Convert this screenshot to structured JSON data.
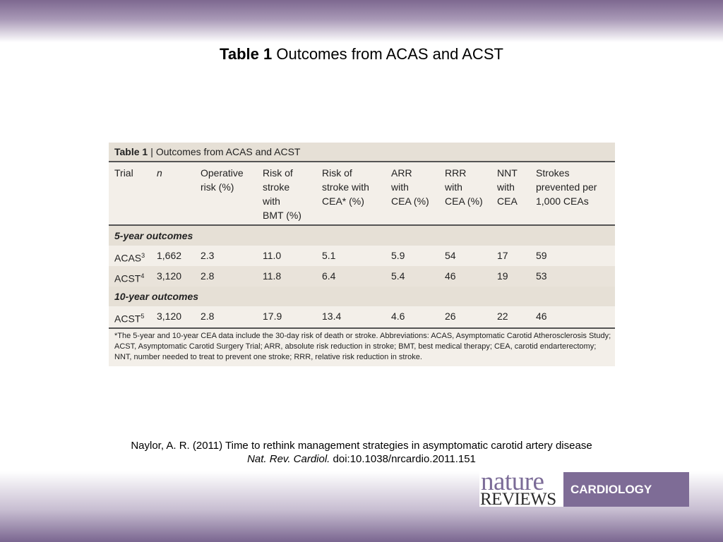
{
  "slide": {
    "title_bold": "Table 1",
    "title_rest": "Outcomes from ACAS and ACST"
  },
  "table": {
    "caption_label": "Table 1",
    "caption_sep": "|",
    "caption_text": "Outcomes from ACAS and ACST",
    "headers": [
      [
        "Trial"
      ],
      [
        "n"
      ],
      [
        "Operative",
        "risk (%)"
      ],
      [
        "Risk of",
        "stroke",
        "with",
        "BMT (%)"
      ],
      [
        "Risk of",
        "stroke with",
        "CEA* (%)"
      ],
      [
        "ARR",
        "with",
        "CEA (%)"
      ],
      [
        "RRR",
        "with",
        "CEA (%)"
      ],
      [
        "NNT",
        "with",
        "CEA"
      ],
      [
        "Strokes",
        "prevented per",
        "1,000 CEAs"
      ]
    ],
    "section_5yr": "5-year outcomes",
    "section_10yr": "10-year outcomes",
    "rows_5yr": [
      {
        "trial": "ACAS",
        "sup": "3",
        "n": "1,662",
        "op": "2.3",
        "bmt": "11.0",
        "cea": "5.1",
        "arr": "5.9",
        "rrr": "54",
        "nnt": "17",
        "prevented": "59"
      },
      {
        "trial": "ACST",
        "sup": "4",
        "n": "3,120",
        "op": "2.8",
        "bmt": "11.8",
        "cea": "6.4",
        "arr": "5.4",
        "rrr": "46",
        "nnt": "19",
        "prevented": "53"
      }
    ],
    "rows_10yr": [
      {
        "trial": "ACST",
        "sup": "5",
        "n": "3,120",
        "op": "2.8",
        "bmt": "17.9",
        "cea": "13.4",
        "arr": "4.6",
        "rrr": "26",
        "nnt": "22",
        "prevented": "46"
      }
    ],
    "footnote": "*The 5-year and 10-year CEA data include the 30-day risk of death or stroke. Abbreviations: ACAS, Asymptomatic Carotid Atherosclerosis Study; ACST, Asymptomatic Carotid Surgery Trial; ARR, absolute risk reduction in stroke; BMT, best medical therapy; CEA, carotid endarterectomy; NNT, number needed to treat to prevent one stroke; RRR, relative risk reduction in stroke."
  },
  "citation": {
    "line1": "Naylor, A. R. (2011) Time to rethink management strategies in asymptomatic carotid artery disease",
    "journal": "Nat. Rev. Cardiol.",
    "doi": "doi:10.1038/nrcardio.2011.151"
  },
  "logo": {
    "nature": "nature",
    "reviews": "REVIEWS",
    "section": "CARDIOLOGY"
  },
  "colors": {
    "brand_purple": "#7e6c96",
    "table_bg": "#f3efe9",
    "table_band": "#e6e0d6"
  }
}
